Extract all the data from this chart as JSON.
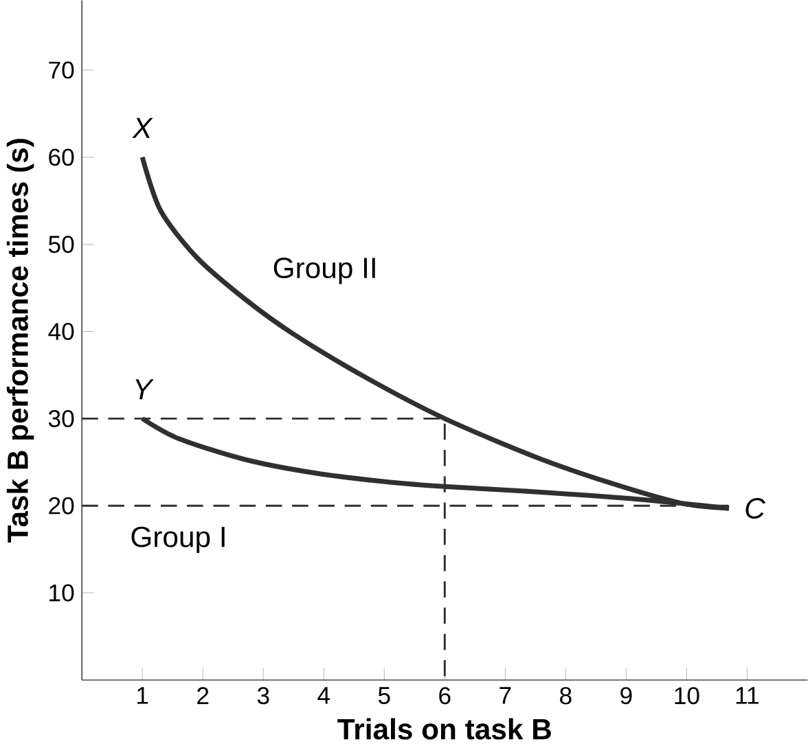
{
  "chart_data": {
    "type": "line",
    "xlabel": "Trials on task B",
    "ylabel": "Task B performance times (s)",
    "xlim": [
      0,
      12
    ],
    "ylim": [
      0,
      78
    ],
    "xticks": [
      1,
      2,
      3,
      4,
      5,
      6,
      7,
      8,
      9,
      10,
      11
    ],
    "yticks": [
      10,
      20,
      30,
      40,
      50,
      60,
      70
    ],
    "grid": false,
    "legend": false,
    "marker": "none",
    "line_style": "solid",
    "series": [
      {
        "name": "Group II",
        "color": "#303030",
        "x": [
          1,
          1.3,
          1.9,
          2.7,
          3.5,
          4.7,
          6,
          7.5,
          8.7,
          9.9,
          10.7
        ],
        "values": [
          60,
          53.9,
          48.5,
          43.7,
          39.7,
          34.7,
          30,
          25.6,
          22.7,
          20.3,
          19.7
        ]
      },
      {
        "name": "Group I",
        "color": "#303030",
        "x": [
          1,
          1.6,
          2.7,
          3.9,
          5.1,
          6,
          7.5,
          9.1,
          10.7
        ],
        "values": [
          30,
          27.7,
          25.3,
          23.7,
          22.7,
          22.2,
          21.6,
          20.8,
          19.7
        ]
      },
      {
        "color": "#303030",
        "line_style": "dashed",
        "x": [
          0,
          6,
          6
        ],
        "values": [
          30,
          30,
          0
        ]
      },
      {
        "color": "#303030",
        "line_style": "dashed",
        "x": [
          0,
          10.7
        ],
        "values": [
          20,
          20
        ]
      }
    ],
    "annotations": [
      "X",
      "Y",
      "C"
    ]
  }
}
